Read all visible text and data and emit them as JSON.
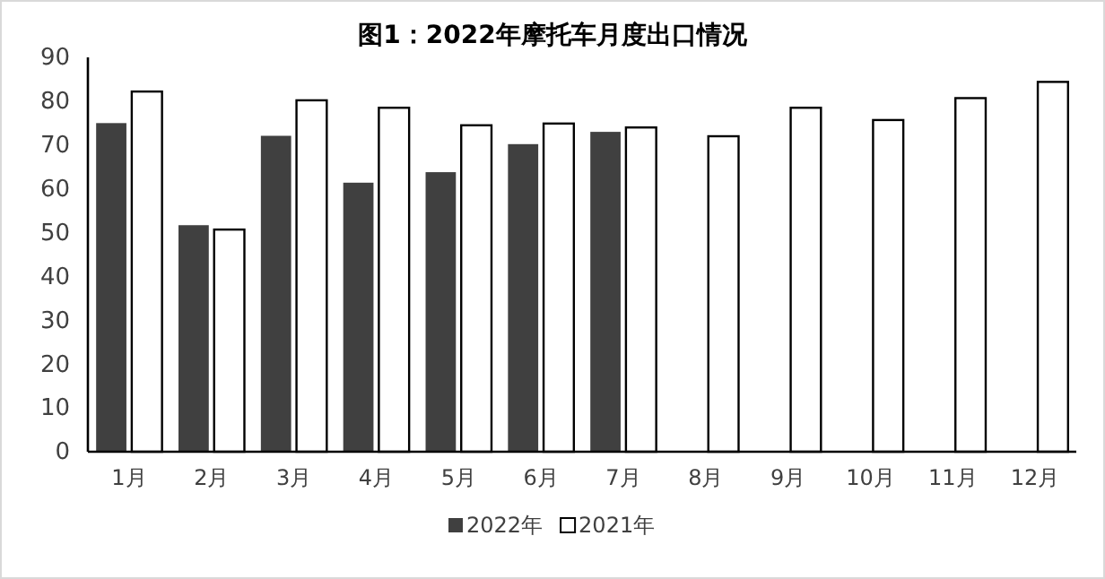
{
  "chart_data": {
    "type": "bar",
    "title": "图1：2022年摩托车月度出口情况",
    "categories": [
      "1月",
      "2月",
      "3月",
      "4月",
      "5月",
      "6月",
      "7月",
      "8月",
      "9月",
      "10月",
      "11月",
      "12月"
    ],
    "series": [
      {
        "name": "2022年",
        "color": "#404040",
        "values": [
          75,
          51.7,
          72.1,
          61.4,
          63.8,
          70.2,
          73,
          null,
          null,
          null,
          null,
          null
        ]
      },
      {
        "name": "2021年",
        "color": "#ffffff",
        "values": [
          82.2,
          50.7,
          80.2,
          78.5,
          74.5,
          74.9,
          74,
          72,
          78.5,
          75.7,
          80.7,
          84.4
        ]
      }
    ],
    "ylim": [
      0,
      90
    ],
    "yticks": [
      0,
      10,
      20,
      30,
      40,
      50,
      60,
      70,
      80,
      90
    ],
    "grid": false,
    "legend": "bottom"
  }
}
